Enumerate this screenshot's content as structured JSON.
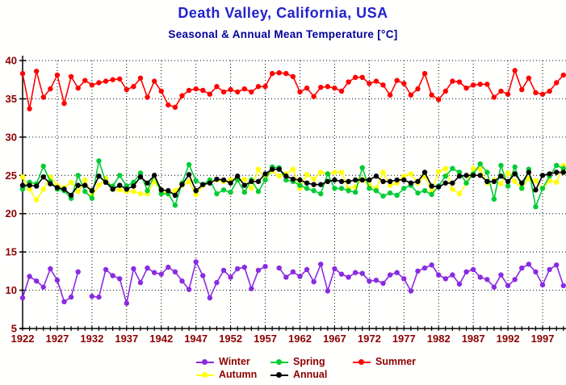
{
  "header": {
    "title": "Death Valley, California, USA",
    "subtitle": "Seasonal & Annual Mean Temperature [°C]",
    "title_color": "#2222cc",
    "subtitle_color": "#000099"
  },
  "chart_data": {
    "type": "line",
    "title": "Death Valley, California, USA",
    "subtitle": "Seasonal & Annual Mean Temperature [°C]",
    "xlabel": "",
    "ylabel": "",
    "x_start_year": 1922,
    "x_end_year": 2000,
    "xticks_labeled": [
      1922,
      1927,
      1932,
      1937,
      1942,
      1947,
      1952,
      1957,
      1962,
      1967,
      1972,
      1977,
      1982,
      1987,
      1992,
      1997
    ],
    "x_minor_tick_step_years": 1,
    "ylim": [
      5,
      40
    ],
    "yticks": [
      5,
      10,
      15,
      20,
      25,
      30,
      35,
      40
    ],
    "grid": "dotted black, horizontal at every 5°C, vertical at labeled years",
    "axis_color": "#000000",
    "tick_label_color": "#8b0000",
    "legend_position": "bottom",
    "legend_text_color": "#8b0000",
    "legend_rows": [
      [
        "Winter",
        "Spring",
        "Summer"
      ],
      [
        "Autumn",
        "Annual"
      ]
    ],
    "series": [
      {
        "name": "Winter",
        "color": "#8a2be2",
        "values": [
          9.0,
          11.8,
          11.2,
          10.4,
          12.8,
          11.3,
          8.5,
          9.1,
          12.4,
          null,
          9.2,
          9.1,
          12.7,
          11.9,
          11.5,
          8.3,
          12.8,
          11.0,
          12.9,
          12.3,
          12.1,
          13.0,
          12.4,
          11.2,
          10.1,
          13.7,
          11.9,
          9.0,
          11.0,
          12.6,
          11.7,
          12.8,
          13.0,
          10.2,
          12.6,
          13.1,
          null,
          12.9,
          11.7,
          12.4,
          11.8,
          12.7,
          11.1,
          13.4,
          9.9,
          12.8,
          12.1,
          11.7,
          12.3,
          12.2,
          11.2,
          11.3,
          10.9,
          12.0,
          12.3,
          11.5,
          9.9,
          12.5,
          12.9,
          13.3,
          12.0,
          11.5,
          12.0,
          10.8,
          12.4,
          12.7,
          11.7,
          11.4,
          10.4,
          12.0,
          10.6,
          11.4,
          12.9,
          13.4,
          12.4,
          10.7,
          12.7,
          13.3,
          10.6
        ]
      },
      {
        "name": "Autumn",
        "color": "#ffff00",
        "values": [
          24.8,
          23.2,
          21.8,
          23.2,
          24.8,
          23.7,
          23.4,
          24.1,
          22.9,
          24.4,
          22.4,
          23.7,
          24.6,
          23.2,
          23.1,
          22.9,
          22.9,
          22.6,
          22.6,
          24.2,
          23.0,
          22.6,
          23.0,
          23.7,
          24.2,
          22.5,
          23.7,
          24.2,
          24.4,
          24.2,
          24.4,
          24.4,
          24.5,
          23.3,
          25.8,
          24.5,
          25.6,
          24.9,
          25.2,
          25.8,
          23.3,
          25.1,
          24.5,
          25.4,
          25.2,
          25.4,
          25.4,
          23.3,
          23.5,
          24.5,
          23.7,
          23.3,
          25.4,
          23.7,
          24.0,
          24.9,
          25.2,
          24.0,
          24.9,
          22.9,
          25.5,
          25.9,
          23.2,
          22.6,
          24.0,
          25.9,
          25.8,
          24.0,
          24.4,
          23.9,
          25.3,
          24.2,
          23.3,
          24.6,
          24.3,
          23.3,
          24.3,
          24.1,
          26.3
        ]
      },
      {
        "name": "Spring",
        "color": "#00cc33",
        "values": [
          23.2,
          24.1,
          23.9,
          26.2,
          24.2,
          23.2,
          23.0,
          22.0,
          25.0,
          22.9,
          22.0,
          26.9,
          24.1,
          23.6,
          25.0,
          23.6,
          24.1,
          25.3,
          23.0,
          25.0,
          22.6,
          22.6,
          21.1,
          24.0,
          26.4,
          24.3,
          23.8,
          24.4,
          22.6,
          23.1,
          22.8,
          24.4,
          22.8,
          24.4,
          22.9,
          24.4,
          26.1,
          26.0,
          24.4,
          24.2,
          23.7,
          23.3,
          23.0,
          22.6,
          25.2,
          23.3,
          23.3,
          23.0,
          22.8,
          26.0,
          23.3,
          23.0,
          22.3,
          22.7,
          22.4,
          23.3,
          23.7,
          22.7,
          23.0,
          22.5,
          23.6,
          24.9,
          25.9,
          25.4,
          24.0,
          25.2,
          26.5,
          25.4,
          21.9,
          26.3,
          23.6,
          26.1,
          23.3,
          25.8,
          20.9,
          23.3,
          24.9,
          26.3,
          25.9
        ]
      },
      {
        "name": "Annual",
        "color": "#000000",
        "values": [
          23.7,
          23.7,
          23.6,
          24.8,
          23.9,
          23.4,
          23.2,
          22.4,
          23.7,
          23.7,
          23.0,
          24.9,
          24.1,
          23.2,
          23.7,
          23.2,
          23.6,
          24.8,
          24.0,
          25.0,
          23.1,
          23.0,
          22.4,
          23.8,
          25.1,
          23.0,
          23.8,
          24.0,
          24.5,
          24.4,
          24.0,
          24.9,
          23.7,
          24.2,
          24.2,
          25.2,
          25.8,
          25.8,
          24.9,
          24.5,
          24.4,
          24.0,
          23.8,
          23.8,
          24.2,
          24.4,
          24.2,
          24.2,
          24.4,
          24.4,
          24.4,
          24.9,
          24.2,
          24.2,
          24.4,
          24.4,
          24.0,
          24.2,
          25.4,
          23.6,
          23.5,
          24.0,
          24.0,
          24.9,
          25.0,
          25.0,
          25.0,
          24.2,
          24.2,
          24.9,
          24.2,
          25.2,
          24.0,
          25.4,
          23.1,
          25.0,
          25.2,
          25.4,
          25.4
        ]
      },
      {
        "name": "Summer",
        "color": "#ff0000",
        "values": [
          38.3,
          33.7,
          38.6,
          35.2,
          36.3,
          38.1,
          34.4,
          37.9,
          36.4,
          37.4,
          36.8,
          37.1,
          37.3,
          37.5,
          37.6,
          36.2,
          36.6,
          37.7,
          35.2,
          37.3,
          36.0,
          34.2,
          33.9,
          35.4,
          36.1,
          36.3,
          36.1,
          35.6,
          36.6,
          35.9,
          36.2,
          35.9,
          36.3,
          35.9,
          36.6,
          36.6,
          38.3,
          38.4,
          38.3,
          37.9,
          35.9,
          36.4,
          35.3,
          36.5,
          36.6,
          36.4,
          36.0,
          37.2,
          37.8,
          37.8,
          37.0,
          37.3,
          36.8,
          35.5,
          37.4,
          37.0,
          35.5,
          36.3,
          38.3,
          35.5,
          34.9,
          36.0,
          37.3,
          37.2,
          36.4,
          36.8,
          36.9,
          36.9,
          35.2,
          36.0,
          35.6,
          38.7,
          36.2,
          37.7,
          35.8,
          35.6,
          36.0,
          37.1,
          38.1
        ]
      }
    ]
  },
  "legend": {
    "items": [
      {
        "label": "Winter",
        "color": "#8a2be2"
      },
      {
        "label": "Spring",
        "color": "#00cc33"
      },
      {
        "label": "Summer",
        "color": "#ff0000"
      },
      {
        "label": "Autumn",
        "color": "#ffff00"
      },
      {
        "label": "Annual",
        "color": "#000000"
      }
    ]
  }
}
